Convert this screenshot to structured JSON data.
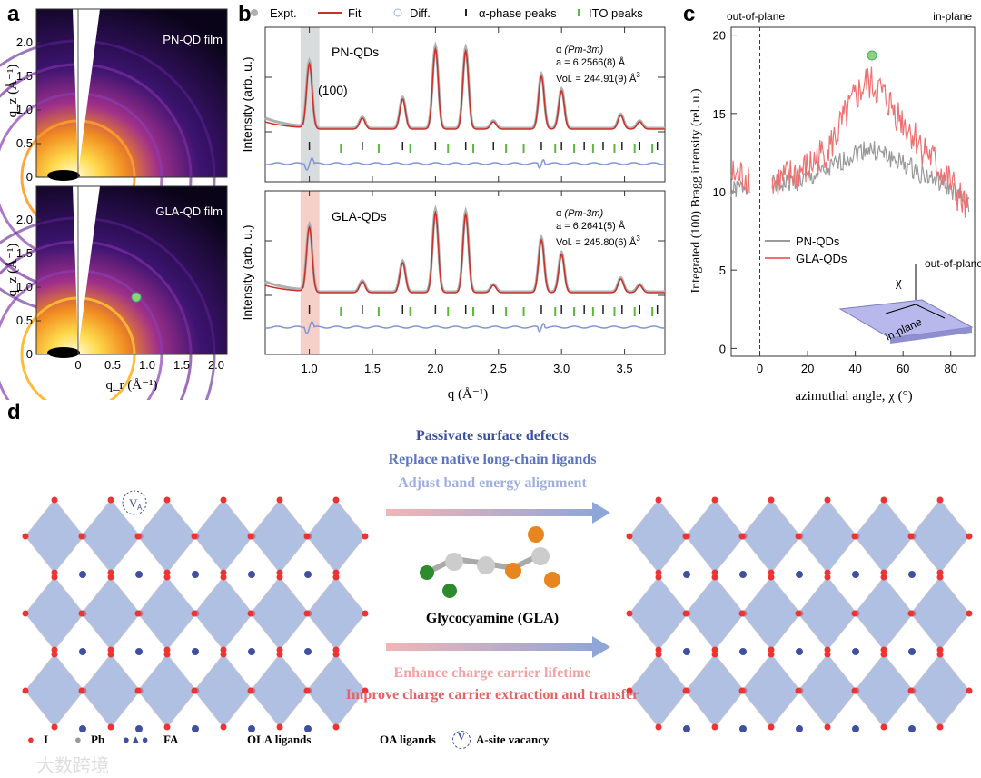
{
  "panel_labels": {
    "a": "a",
    "b": "b",
    "c": "c",
    "d": "d"
  },
  "panel_a": {
    "top_title": "PN-QD film",
    "bottom_title": "GLA-QD film",
    "ylabel": "q_z (Å⁻¹)",
    "xlabel": "q_r (Å⁻¹)",
    "yticks": [
      "0",
      "0.5",
      "1.0",
      "1.5",
      "2.0"
    ],
    "xticks": [
      "0",
      "0.5",
      "1.0",
      "1.5",
      "2.0"
    ],
    "marker_color": "#8fd27a"
  },
  "chart_data": [
    {
      "type": "line",
      "panel": "b",
      "title": "",
      "xlabel": "q (Å⁻¹)",
      "ylabel": "Intensity (arb. u.)",
      "xlim": [
        0.65,
        3.82
      ],
      "xticks": [
        "1.0",
        "1.5",
        "2.0",
        "2.5",
        "3.0",
        "3.5"
      ],
      "legend": [
        "Expt.",
        "Fit",
        "Diff.",
        "α-phase peaks",
        "ITO peaks"
      ],
      "legend_placement": "top",
      "peak_label": "(100)",
      "alpha_peaks": [
        1.0,
        1.42,
        1.74,
        2.0,
        2.24,
        2.46,
        2.84,
        3.0,
        3.18,
        3.33,
        3.48,
        3.62,
        3.76
      ],
      "ito_peaks": [
        1.25,
        1.55,
        1.8,
        2.1,
        2.3,
        2.56,
        2.7,
        2.95,
        3.1,
        3.25,
        3.42,
        3.58,
        3.72
      ],
      "peaks": {
        "q": [
          1.0,
          1.42,
          1.74,
          2.0,
          2.24,
          2.46,
          2.84,
          3.0,
          3.47,
          3.62
        ],
        "height": [
          0.72,
          0.12,
          0.33,
          0.88,
          0.86,
          0.08,
          0.58,
          0.42,
          0.15,
          0.08
        ]
      },
      "subplots": [
        {
          "sample": "PN-QDs",
          "phase": "α",
          "space_group": "(Pm-3m)",
          "lattice": "a = 6.2566(8) Å",
          "volume": "Vol. = 244.91(9) Å",
          "vol_sup": "3",
          "highlight_color": "#d9dcdc"
        },
        {
          "sample": "GLA-QDs",
          "phase": "α",
          "space_group": "(Pm-3m)",
          "lattice": "a = 6.2641(5) Å",
          "volume": "Vol. = 245.80(6) Å",
          "vol_sup": "3",
          "highlight_color": "#f6cfc8"
        }
      ],
      "colors": {
        "expt": "#b0b0b0",
        "fit": "#c8322a",
        "diff": "#7f96d8",
        "alpha": "#222222",
        "ito": "#5cb83c"
      }
    },
    {
      "type": "line",
      "panel": "c",
      "xlabel": "azimuthal angle, χ  (°)",
      "ylabel": "Integrated (100) Bragg intensity (rel. u.)",
      "xlim": [
        -12,
        90
      ],
      "ylim": [
        -0.5,
        20.5
      ],
      "xticks": [
        "0",
        "20",
        "40",
        "60",
        "80"
      ],
      "yticks": [
        "0",
        "5",
        "10",
        "15",
        "20"
      ],
      "annotations": {
        "left": "out-of-plane",
        "right": "in-plane",
        "inset_out": "out-of-plane",
        "inset_chi": "χ",
        "inset_in": "in-plane"
      },
      "legend_placement": "center-left",
      "series": [
        {
          "name": "PN-QDs",
          "color": "#9a9a9a",
          "x": [
            -12,
            -5,
            5,
            10,
            20,
            30,
            40,
            45,
            50,
            60,
            70,
            80,
            88
          ],
          "y": [
            10,
            10.5,
            10.5,
            10.5,
            10.8,
            11.5,
            12.5,
            12.8,
            12.5,
            11.8,
            11,
            10.2,
            9
          ]
        },
        {
          "name": "GLA-QDs",
          "color": "#ee7070",
          "x": [
            -12,
            -5,
            5,
            10,
            20,
            30,
            40,
            45,
            50,
            60,
            70,
            80,
            88
          ],
          "y": [
            11,
            11,
            10.5,
            10.8,
            11.5,
            13,
            16,
            17,
            16.5,
            14.5,
            12.5,
            10.5,
            8.5
          ]
        }
      ],
      "marker": {
        "x": 47,
        "y": 18.7,
        "color": "#8fd27a"
      }
    }
  ],
  "panel_d": {
    "top_lines": [
      "Passivate surface defects",
      "Replace native long-chain ligands",
      "Adjust band energy alignment"
    ],
    "top_colors": [
      "#3b4f9e",
      "#5d74c2",
      "#9fb0e0"
    ],
    "molecule_name": "Glycocyamine (GLA)",
    "bottom_lines": [
      "Enhance charge carrier lifetime",
      "Improve charge carrier extraction and transfer"
    ],
    "bottom_colors": [
      "#f0a3a3",
      "#e06565"
    ],
    "vacancy": "V",
    "vacancy_sub": "A",
    "legend": {
      "i": "I",
      "pb": "Pb",
      "fa": "FA",
      "ola": "OLA ligands",
      "oa": "OA ligands",
      "vac": "A-site vacancy"
    },
    "octahedron_color": "#8ea6d8"
  },
  "watermark": "大数跨境"
}
